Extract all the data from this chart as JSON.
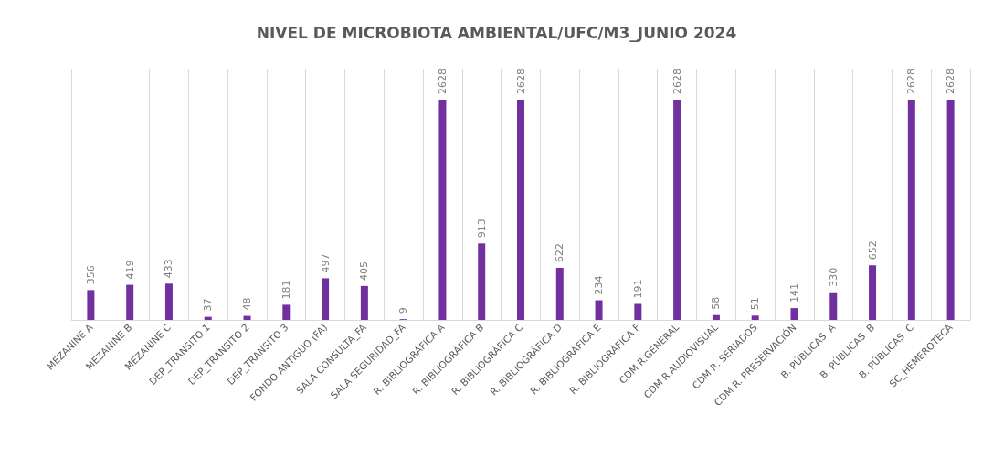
{
  "chart_data": {
    "type": "bar",
    "title": "NIVEL DE MICROBIOTA AMBIENTAL/UFC/M3_JUNIO 2024",
    "categories": [
      "MEZANINE A",
      "MEZANINE B",
      "MEZANINE C",
      "DEP_TRANSITO 1",
      "DEP_TRANSITO 2",
      "DEP_TRANSITO 3",
      "FONDO ANTIGUO (FA)",
      "SALA CONSULTA_FA",
      "SALA SEGURIDAD_FA",
      "R. BIBLIOGRÁFICA A",
      "R. BIBLIOGRÁFICA B",
      "R. BIBLIOGRÁFICA C",
      "R. BIBLIOGRÁFICA D",
      "R. BIBLIOGRÁFICA E",
      "R. BIBLIOGRÁFICA F",
      "CDM R.GENERAL",
      "CDM R.AUDIOVISUAL",
      "CDM R. SERIADOS",
      "CDM R. PRESERVACIÓN",
      "B. PÚBLICAS  A",
      "B. PÚBLICAS  B",
      "B. PÚBLICAS  C",
      "SC_HEMEROTECA"
    ],
    "values": [
      356,
      419,
      433,
      37,
      48,
      181,
      497,
      405,
      9,
      2628,
      913,
      2628,
      622,
      234,
      191,
      2628,
      58,
      51,
      141,
      330,
      652,
      2628,
      2628
    ],
    "color": "#7030a0",
    "data_labels": true,
    "grid": "x"
  }
}
